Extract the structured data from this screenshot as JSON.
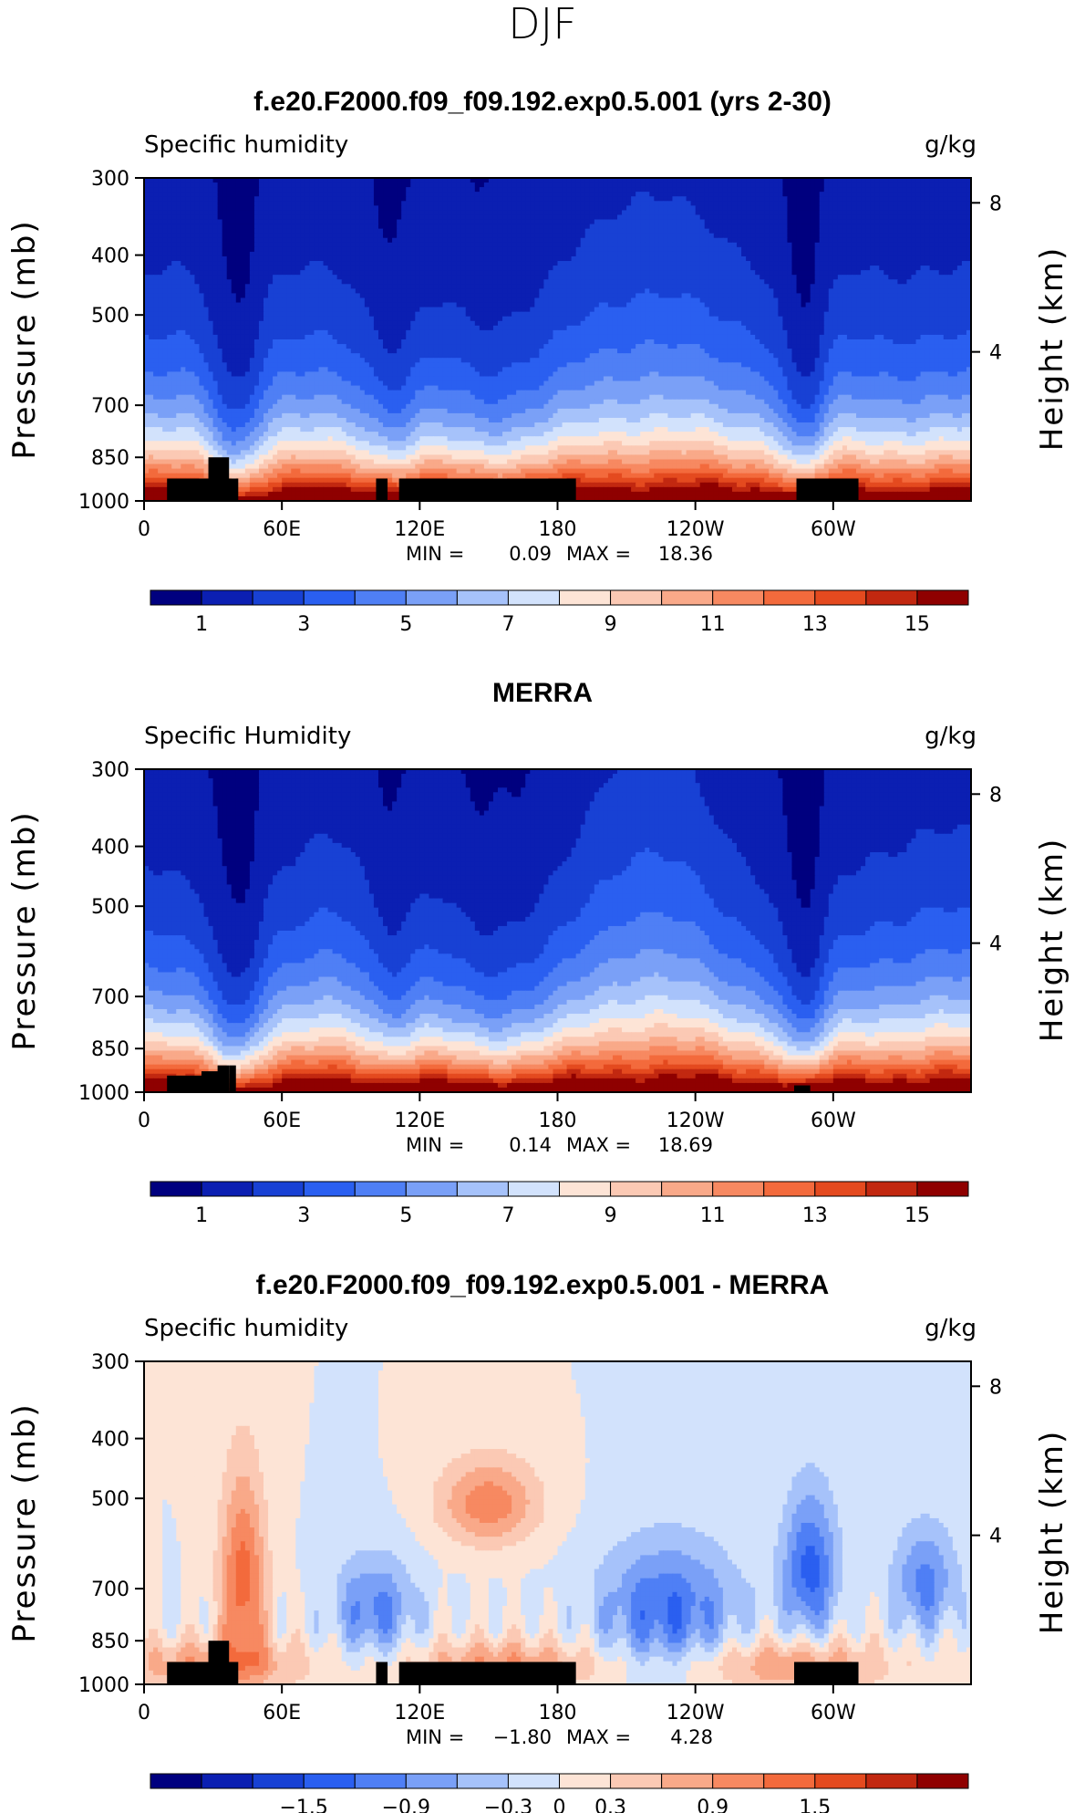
{
  "page": {
    "season_title": "DJF"
  },
  "chart_data": [
    {
      "type": "contour",
      "title": "f.e20.F2000.f09_f09.192.exp0.5.001 (yrs 2-30)",
      "variable_label": "Specific humidity",
      "units": "g/kg",
      "ylabel": "Pressure (mb)",
      "ylabel_right": "Height (km)",
      "y_ticks": [
        "300",
        "400",
        "500",
        "700",
        "850",
        "1000"
      ],
      "y_tick_values": [
        300,
        400,
        500,
        700,
        850,
        1000
      ],
      "right_ticks": [
        "8",
        "4"
      ],
      "right_tick_values": [
        8,
        4
      ],
      "x_ticks": [
        "0",
        "60E",
        "120E",
        "180",
        "120W",
        "60W"
      ],
      "x_tick_values": [
        0,
        60,
        120,
        180,
        240,
        300
      ],
      "xlim": [
        0,
        360
      ],
      "ylim": [
        1000,
        300
      ],
      "min_label": "MIN =",
      "min_value": "0.09",
      "max_label": "MAX =",
      "max_value": "18.36",
      "colorbar_levels": [
        "1",
        "3",
        "5",
        "7",
        "9",
        "11",
        "13",
        "15"
      ],
      "colorbar_colors": [
        "#00007f",
        "#0b1fb2",
        "#1841d4",
        "#2a5ff0",
        "#4f7ff5",
        "#7aa0f7",
        "#a6c2fa",
        "#d2e2fc",
        "#fde4d6",
        "#fbc9b4",
        "#f9a989",
        "#f78961",
        "#f36a3c",
        "#e44a1f",
        "#c22810",
        "#8f0000"
      ],
      "terrain": [
        {
          "lon0": 10,
          "lon1": 41,
          "p": 920
        },
        {
          "lon0": 28,
          "lon1": 37,
          "p": 850
        },
        {
          "lon0": 101,
          "lon1": 106,
          "p": 920
        },
        {
          "lon0": 111,
          "lon1": 188,
          "p": 920
        },
        {
          "lon0": 284,
          "lon1": 311,
          "p": 920
        }
      ]
    },
    {
      "type": "contour",
      "title": "MERRA",
      "variable_label": "Specific Humidity",
      "units": "g/kg",
      "ylabel": "Pressure (mb)",
      "ylabel_right": "Height (km)",
      "y_ticks": [
        "300",
        "400",
        "500",
        "700",
        "850",
        "1000"
      ],
      "y_tick_values": [
        300,
        400,
        500,
        700,
        850,
        1000
      ],
      "right_ticks": [
        "8",
        "4"
      ],
      "right_tick_values": [
        8,
        4
      ],
      "x_ticks": [
        "0",
        "60E",
        "120E",
        "180",
        "120W",
        "60W"
      ],
      "x_tick_values": [
        0,
        60,
        120,
        180,
        240,
        300
      ],
      "xlim": [
        0,
        360
      ],
      "ylim": [
        1000,
        300
      ],
      "min_label": "MIN =",
      "min_value": "0.14",
      "max_label": "MAX =",
      "max_value": "18.69",
      "colorbar_levels": [
        "1",
        "3",
        "5",
        "7",
        "9",
        "11",
        "13",
        "15"
      ],
      "colorbar_colors": [
        "#00007f",
        "#0b1fb2",
        "#1841d4",
        "#2a5ff0",
        "#4f7ff5",
        "#7aa0f7",
        "#a6c2fa",
        "#d2e2fc",
        "#fde4d6",
        "#fbc9b4",
        "#f9a989",
        "#f78961",
        "#f36a3c",
        "#e44a1f",
        "#c22810",
        "#8f0000"
      ],
      "terrain": [
        {
          "lon0": 10,
          "lon1": 27,
          "p": 940
        },
        {
          "lon0": 25,
          "lon1": 33,
          "p": 925
        },
        {
          "lon0": 32,
          "lon1": 37,
          "p": 905
        },
        {
          "lon0": 37,
          "lon1": 40,
          "p": 905
        },
        {
          "lon0": 283,
          "lon1": 290,
          "p": 975
        }
      ]
    },
    {
      "type": "contour",
      "title": "f.e20.F2000.f09_f09.192.exp0.5.001 - MERRA",
      "variable_label": "Specific humidity",
      "units": "g/kg",
      "ylabel": "Pressure (mb)",
      "ylabel_right": "Height (km)",
      "y_ticks": [
        "300",
        "400",
        "500",
        "700",
        "850",
        "1000"
      ],
      "y_tick_values": [
        300,
        400,
        500,
        700,
        850,
        1000
      ],
      "right_ticks": [
        "8",
        "4"
      ],
      "right_tick_values": [
        8,
        4
      ],
      "x_ticks": [
        "0",
        "60E",
        "120E",
        "180",
        "120W",
        "60W"
      ],
      "x_tick_values": [
        0,
        60,
        120,
        180,
        240,
        300
      ],
      "xlim": [
        0,
        360
      ],
      "ylim": [
        1000,
        300
      ],
      "min_label": "MIN =",
      "min_value": "−1.80",
      "max_label": "MAX =",
      "max_value": "4.28",
      "colorbar_levels": [
        "−1.5",
        "−0.9",
        "−0.3",
        "0",
        "0.3",
        "0.9",
        "1.5"
      ],
      "colorbar_colors": [
        "#00007f",
        "#0b1fb2",
        "#1841d4",
        "#2a5ff0",
        "#4f7ff5",
        "#7aa0f7",
        "#a6c2fa",
        "#d2e2fc",
        "#fde4d6",
        "#fbc9b4",
        "#f9a989",
        "#f78961",
        "#f36a3c",
        "#e44a1f",
        "#c22810",
        "#8f0000"
      ],
      "terrain": [
        {
          "lon0": 10,
          "lon1": 41,
          "p": 920
        },
        {
          "lon0": 28,
          "lon1": 37,
          "p": 850
        },
        {
          "lon0": 101,
          "lon1": 106,
          "p": 920
        },
        {
          "lon0": 111,
          "lon1": 188,
          "p": 920
        },
        {
          "lon0": 283,
          "lon1": 311,
          "p": 920
        }
      ]
    }
  ]
}
